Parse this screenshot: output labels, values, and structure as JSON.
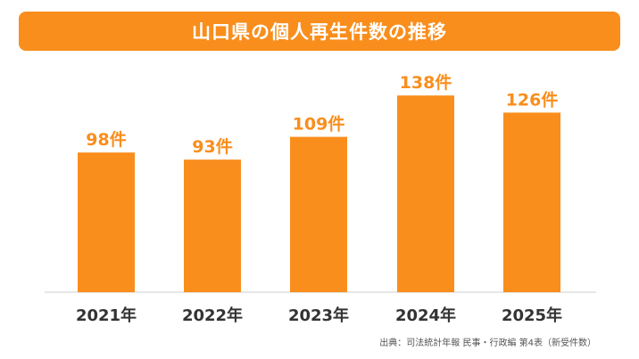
{
  "title": "山口県の個人再生件数の推移",
  "source": "出典：司法統計年報 民事・行政編 第4表（新受件数）",
  "colors": {
    "accent": "#f98e1d",
    "axis": "#cccccc",
    "text": "#333333"
  },
  "chart_data": {
    "type": "bar",
    "title": "山口県の個人再生件数の推移",
    "categories": [
      "2021年",
      "2022年",
      "2023年",
      "2024年",
      "2025年"
    ],
    "values": [
      98,
      93,
      109,
      138,
      126
    ],
    "data_labels": [
      "98件",
      "93件",
      "109件",
      "138件",
      "126件"
    ],
    "ylim": [
      0,
      140
    ],
    "grid": false,
    "legend": "none"
  }
}
